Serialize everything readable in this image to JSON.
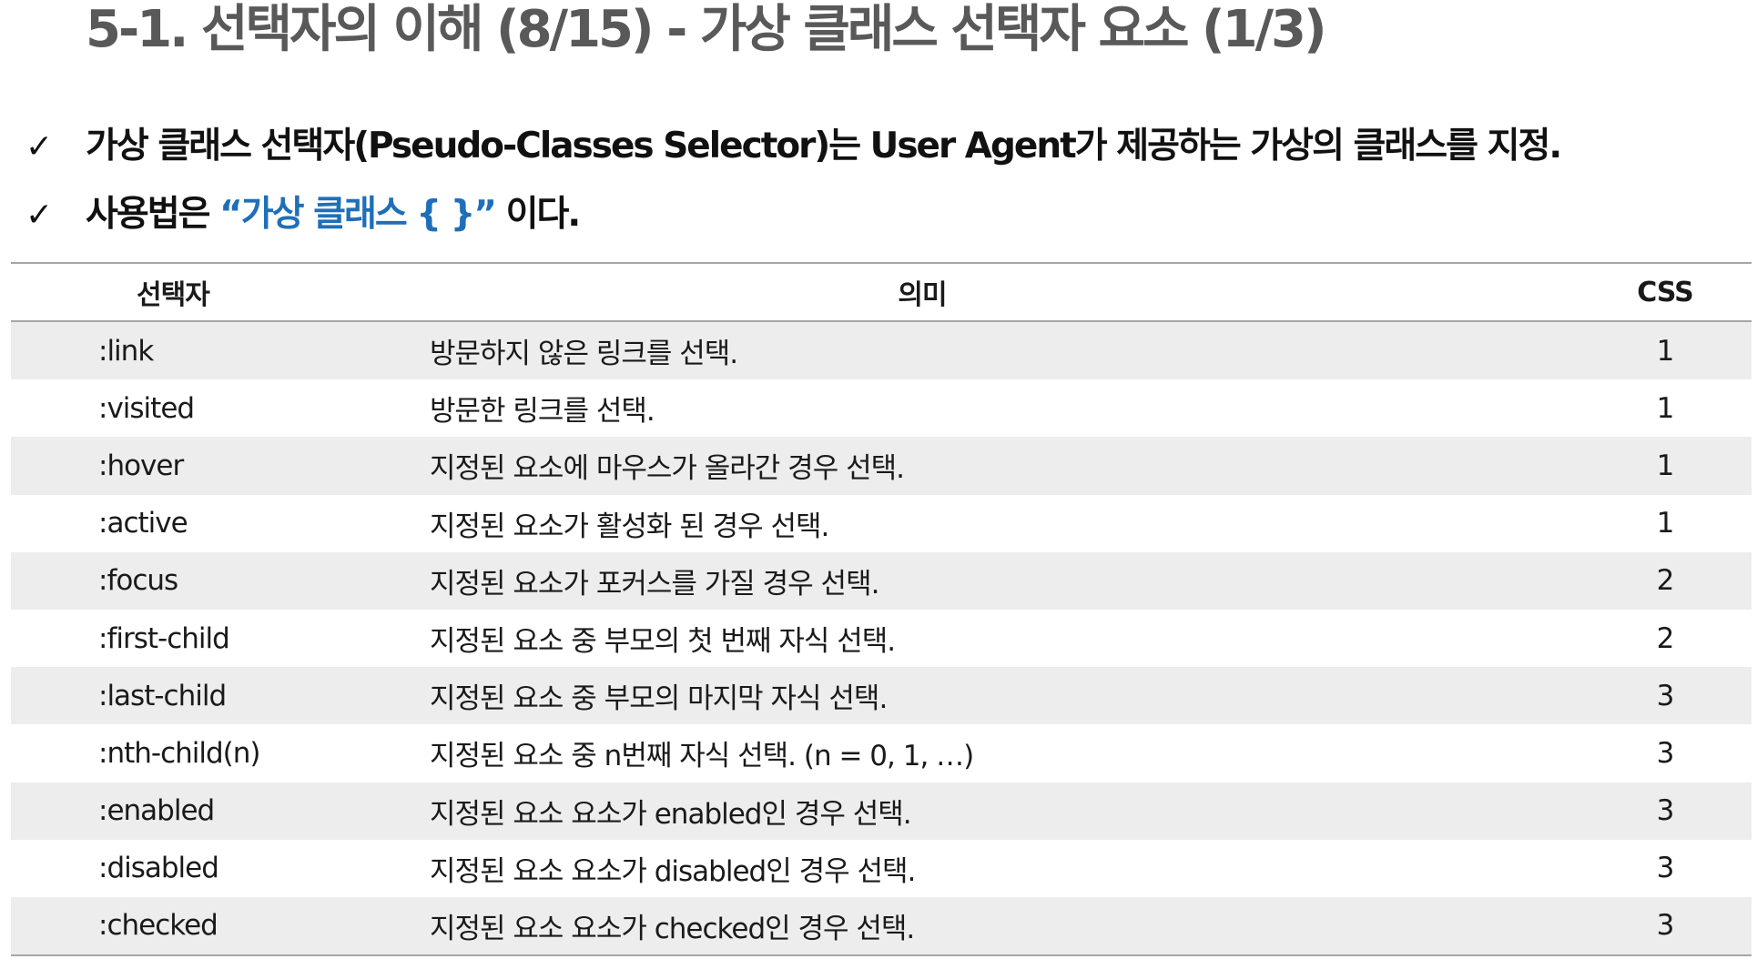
{
  "title": "5-1. 선택자의 이해 (8/15) - 가상 클래스 선택자 요소 (1/3)",
  "bullets": [
    {
      "check": "✓",
      "text": "가상 클래스 선택자(Pseudo-Classes Selector)는 User Agent가 제공하는 가상의 클래스를 지정."
    },
    {
      "check": "✓",
      "prefix": "사용법은 ",
      "accent": "“가상 클래스 { }”",
      "suffix": " 이다."
    }
  ],
  "table": {
    "headers": [
      "선택자",
      "의미",
      "CSS"
    ],
    "rows": [
      {
        "selector": ":link",
        "meaning": "방문하지 않은 링크를 선택.",
        "css": "1"
      },
      {
        "selector": ":visited",
        "meaning": "방문한 링크를 선택.",
        "css": "1"
      },
      {
        "selector": ":hover",
        "meaning": "지정된 요소에 마우스가 올라간 경우 선택.",
        "css": "1"
      },
      {
        "selector": ":active",
        "meaning": "지정된 요소가 활성화 된 경우 선택.",
        "css": "1"
      },
      {
        "selector": ":focus",
        "meaning": "지정된 요소가 포커스를 가질 경우 선택.",
        "css": "2"
      },
      {
        "selector": ":first-child",
        "meaning": "지정된 요소 중 부모의 첫 번째 자식 선택.",
        "css": "2"
      },
      {
        "selector": ":last-child",
        "meaning": "지정된 요소 중 부모의 마지막 자식 선택.",
        "css": "3"
      },
      {
        "selector": ":nth-child(n)",
        "meaning": "지정된 요소 중 n번째 자식 선택. (n = 0, 1, …)",
        "css": "3"
      },
      {
        "selector": ":enabled",
        "meaning": "지정된 요소 요소가 enabled인 경우 선택.",
        "css": "3"
      },
      {
        "selector": ":disabled",
        "meaning": "지정된 요소 요소가 disabled인 경우 선택.",
        "css": "3"
      },
      {
        "selector": ":checked",
        "meaning": "지정된 요소 요소가 checked인 경우 선택.",
        "css": "3"
      }
    ]
  },
  "colors": {
    "title": "#595959",
    "accent": "#1f6fb8",
    "stripe": "#ededed",
    "rule": "#a6a6a6"
  }
}
